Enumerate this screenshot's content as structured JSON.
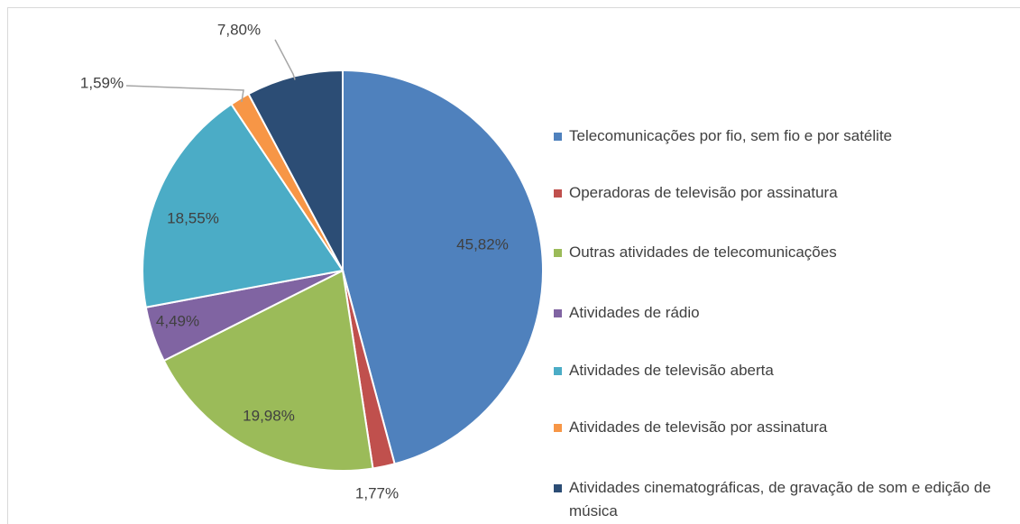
{
  "chart_data": {
    "type": "pie",
    "categories": [
      "Telecomunicações por fio, sem fio e por satélite",
      "Operadoras de televisão por assinatura",
      "Outras atividades de telecomunicações",
      "Atividades de rádio",
      "Atividades de televisão aberta",
      "Atividades de televisão por assinatura",
      "Atividades cinematográficas, de gravação de som e edição de música"
    ],
    "values": [
      45.82,
      1.77,
      19.98,
      4.49,
      18.55,
      1.59,
      7.8
    ],
    "value_labels": [
      "45,82%",
      "1,77%",
      "19,98%",
      "4,49%",
      "18,55%",
      "1,59%",
      "7,80%"
    ],
    "colors": [
      "#4f81bd",
      "#c0504d",
      "#9bbb59",
      "#8064a2",
      "#4bacc6",
      "#f79646",
      "#2c4d75"
    ],
    "legend": "right"
  }
}
